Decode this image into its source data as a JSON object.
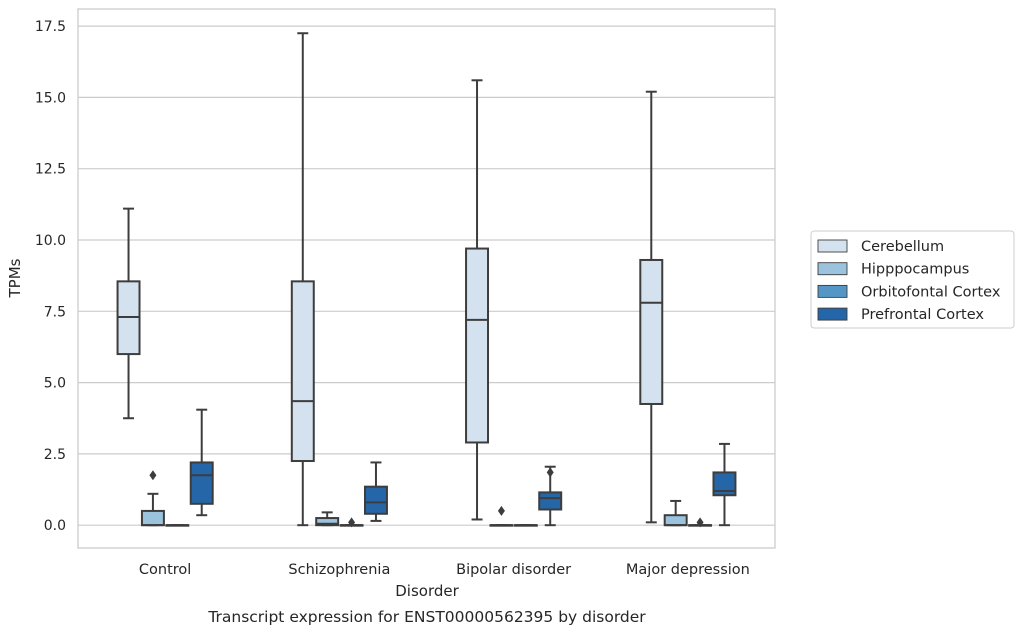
{
  "caption": "Transcript expression for ENST00000562395 by disorder",
  "chart_data": {
    "type": "boxplot",
    "title": "",
    "xlabel": "Disorder",
    "ylabel": "TPMs",
    "ylim": [
      -0.8,
      18.1
    ],
    "yticks": [
      "0.0",
      "2.5",
      "5.0",
      "7.5",
      "10.0",
      "12.5",
      "15.0",
      "17.5"
    ],
    "grid": "horizontal",
    "legend_position": "right",
    "categories": [
      "Control",
      "Schizophrenia",
      "Bipolar disorder",
      "Major depression"
    ],
    "series": [
      {
        "name": "Cerebellum",
        "color": "#d4e2f0",
        "boxes": [
          {
            "whisker_low": 3.75,
            "q1": 6.0,
            "median": 7.3,
            "q3": 8.55,
            "whisker_high": 11.1,
            "outliers": []
          },
          {
            "whisker_low": 0.0,
            "q1": 2.25,
            "median": 4.35,
            "q3": 8.55,
            "whisker_high": 17.25,
            "outliers": []
          },
          {
            "whisker_low": 0.2,
            "q1": 2.9,
            "median": 7.2,
            "q3": 9.7,
            "whisker_high": 15.6,
            "outliers": []
          },
          {
            "whisker_low": 0.1,
            "q1": 4.25,
            "median": 7.8,
            "q3": 9.3,
            "whisker_high": 15.2,
            "outliers": []
          }
        ]
      },
      {
        "name": "Hipppocampus",
        "color": "#9cc3dd",
        "boxes": [
          {
            "whisker_low": 0.0,
            "q1": 0.0,
            "median": 0.0,
            "q3": 0.5,
            "whisker_high": 1.1,
            "outliers": [
              1.75
            ]
          },
          {
            "whisker_low": 0.0,
            "q1": 0.0,
            "median": 0.05,
            "q3": 0.25,
            "whisker_high": 0.45,
            "outliers": []
          },
          {
            "whisker_low": 0.0,
            "q1": 0.0,
            "median": 0.0,
            "q3": 0.0,
            "whisker_high": 0.0,
            "outliers": [
              0.5
            ]
          },
          {
            "whisker_low": 0.0,
            "q1": 0.0,
            "median": 0.0,
            "q3": 0.35,
            "whisker_high": 0.85,
            "outliers": []
          }
        ]
      },
      {
        "name": "Orbitofontal Cortex",
        "color": "#5497c6",
        "boxes": [
          {
            "whisker_low": 0.0,
            "q1": 0.0,
            "median": 0.0,
            "q3": 0.0,
            "whisker_high": 0.0,
            "outliers": []
          },
          {
            "whisker_low": 0.0,
            "q1": 0.0,
            "median": 0.0,
            "q3": 0.0,
            "whisker_high": 0.0,
            "outliers": [
              0.1
            ]
          },
          {
            "whisker_low": 0.0,
            "q1": 0.0,
            "median": 0.0,
            "q3": 0.0,
            "whisker_high": 0.0,
            "outliers": []
          },
          {
            "whisker_low": 0.0,
            "q1": 0.0,
            "median": 0.0,
            "q3": 0.0,
            "whisker_high": 0.0,
            "outliers": [
              0.1
            ]
          }
        ]
      },
      {
        "name": "Prefrontal Cortex",
        "color": "#2466a8",
        "boxes": [
          {
            "whisker_low": 0.35,
            "q1": 0.75,
            "median": 1.75,
            "q3": 2.2,
            "whisker_high": 4.05,
            "outliers": []
          },
          {
            "whisker_low": 0.15,
            "q1": 0.4,
            "median": 0.8,
            "q3": 1.35,
            "whisker_high": 2.2,
            "outliers": []
          },
          {
            "whisker_low": 0.0,
            "q1": 0.55,
            "median": 0.95,
            "q3": 1.15,
            "whisker_high": 2.05,
            "outliers": [
              1.85
            ]
          },
          {
            "whisker_low": 0.0,
            "q1": 1.05,
            "median": 1.2,
            "q3": 1.85,
            "whisker_high": 2.85,
            "outliers": []
          }
        ]
      }
    ]
  }
}
